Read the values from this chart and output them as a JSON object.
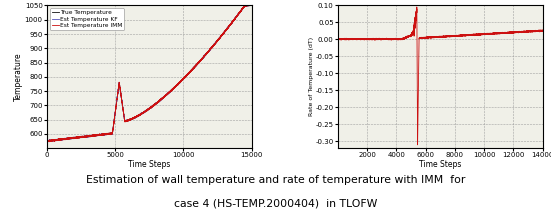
{
  "left_plot": {
    "xlabel": "Time Steps",
    "ylabel": "Temperature",
    "xlim": [
      0,
      15000
    ],
    "ylim": [
      550,
      1050
    ],
    "yticks": [
      600,
      650,
      700,
      750,
      800,
      850,
      900,
      950,
      1000,
      1050
    ],
    "xticks": [
      0,
      5000,
      10000,
      15000
    ],
    "legend": [
      "True Temperature",
      "Est Temperature KF",
      "Est Temperature IMM"
    ],
    "legend_colors": [
      "#111111",
      "#5555bb",
      "#cc1111"
    ],
    "bg_color": "#f0f0e8"
  },
  "right_plot": {
    "xlabel": "Time Steps",
    "ylabel": "Rate of Temperature (dT)",
    "xlim": [
      0,
      14000
    ],
    "ylim": [
      -0.32,
      0.1
    ],
    "yticks": [
      -0.3,
      -0.25,
      -0.2,
      -0.15,
      -0.1,
      -0.05,
      0,
      0.05,
      0.1
    ],
    "xticks": [
      2000,
      4000,
      6000,
      8000,
      10000,
      12000,
      14000
    ],
    "bg_color": "#f0f0e8"
  },
  "caption_line1": "Estimation of wall temperature and rate of temperature with IMM  for",
  "caption_line2": "case 4 (HS-TEMP.2000404)  in TLOFW",
  "caption_fontsize": 7.8,
  "figure_bg": "#ffffff",
  "tick_fontsize": 5.0,
  "label_fontsize": 5.5,
  "legend_fontsize": 4.2
}
